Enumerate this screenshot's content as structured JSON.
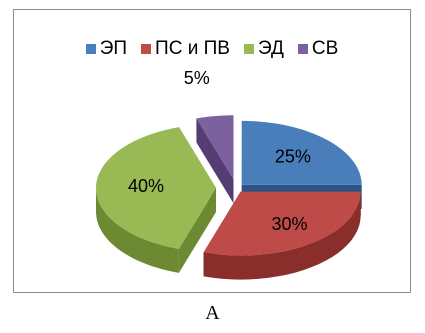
{
  "chart_data": {
    "type": "pie",
    "categories": [
      "ЭП",
      "ПС и ПВ",
      "ЭД",
      "СВ"
    ],
    "values": [
      25,
      30,
      40,
      5
    ],
    "labels": [
      "25%",
      "30%",
      "40%",
      "5%"
    ],
    "colors": [
      "#4a7ebb",
      "#be4b48",
      "#98b954",
      "#7d60a0"
    ],
    "side_colors": [
      "#2c5383",
      "#8a2e2b",
      "#6d8a33",
      "#533d72"
    ],
    "title": "",
    "legend_position": "top",
    "style": "3d-exploded"
  },
  "caption": "A"
}
